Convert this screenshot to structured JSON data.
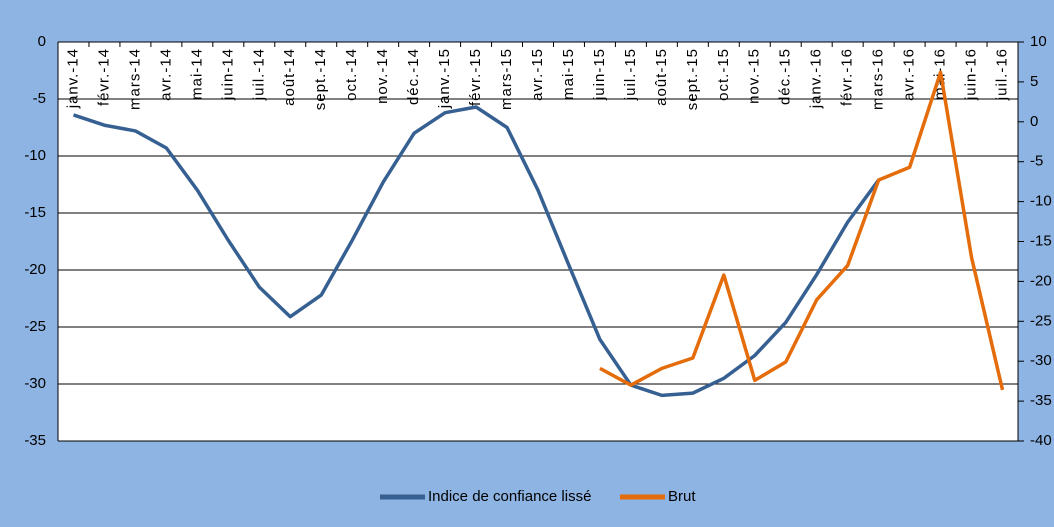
{
  "chart_data": {
    "type": "line",
    "categories": [
      "janv.-14",
      "févr.-14",
      "mars-14",
      "avr.-14",
      "mai-14",
      "juin-14",
      "juil.-14",
      "août-14",
      "sept.-14",
      "oct.-14",
      "nov.-14",
      "déc.-14",
      "janv.-15",
      "févr.-15",
      "mars-15",
      "avr.-15",
      "mai-15",
      "juin-15",
      "juil.-15",
      "août-15",
      "sept.-15",
      "oct.-15",
      "nov.-15",
      "déc.-15",
      "janv.-16",
      "févr.-16",
      "mars-16",
      "avr.-16",
      "mai-16",
      "juin-16",
      "juil.-16"
    ],
    "series": [
      {
        "name": "Indice de confiance lissé",
        "color": "#376092",
        "axis": "y",
        "values": [
          -6.4,
          -7.3,
          -7.8,
          -9.3,
          -13,
          -17.4,
          -21.5,
          -24.1,
          -22.2,
          -17.4,
          -12.3,
          -8,
          -6.2,
          -5.7,
          -7.5,
          -13,
          -19.6,
          -26.1,
          -30.1,
          -31,
          -30.8,
          -29.5,
          -27.5,
          -24.6,
          -20.4,
          -15.8,
          -12.1,
          null,
          null,
          null,
          null
        ]
      },
      {
        "name": "Brut",
        "color": "#e46c0a",
        "axis": "y2",
        "values": [
          null,
          null,
          null,
          null,
          null,
          null,
          null,
          null,
          null,
          null,
          null,
          null,
          null,
          null,
          null,
          null,
          null,
          -30.9,
          -33,
          -30.9,
          -29.6,
          -19.2,
          -32.4,
          -30.1,
          -22.3,
          -18,
          -7.3,
          -5.7,
          6.2,
          -17,
          -33.6
        ]
      }
    ],
    "ylim": [
      -35,
      0
    ],
    "yticks": [
      0,
      -5,
      -10,
      -15,
      -20,
      -25,
      -30,
      -35
    ],
    "y2lim": [
      -40,
      10
    ],
    "y2ticks": [
      10,
      5,
      0,
      -5,
      -10,
      -15,
      -20,
      -25,
      -30,
      -35,
      -40
    ],
    "grid": true,
    "legend": "bottom"
  }
}
